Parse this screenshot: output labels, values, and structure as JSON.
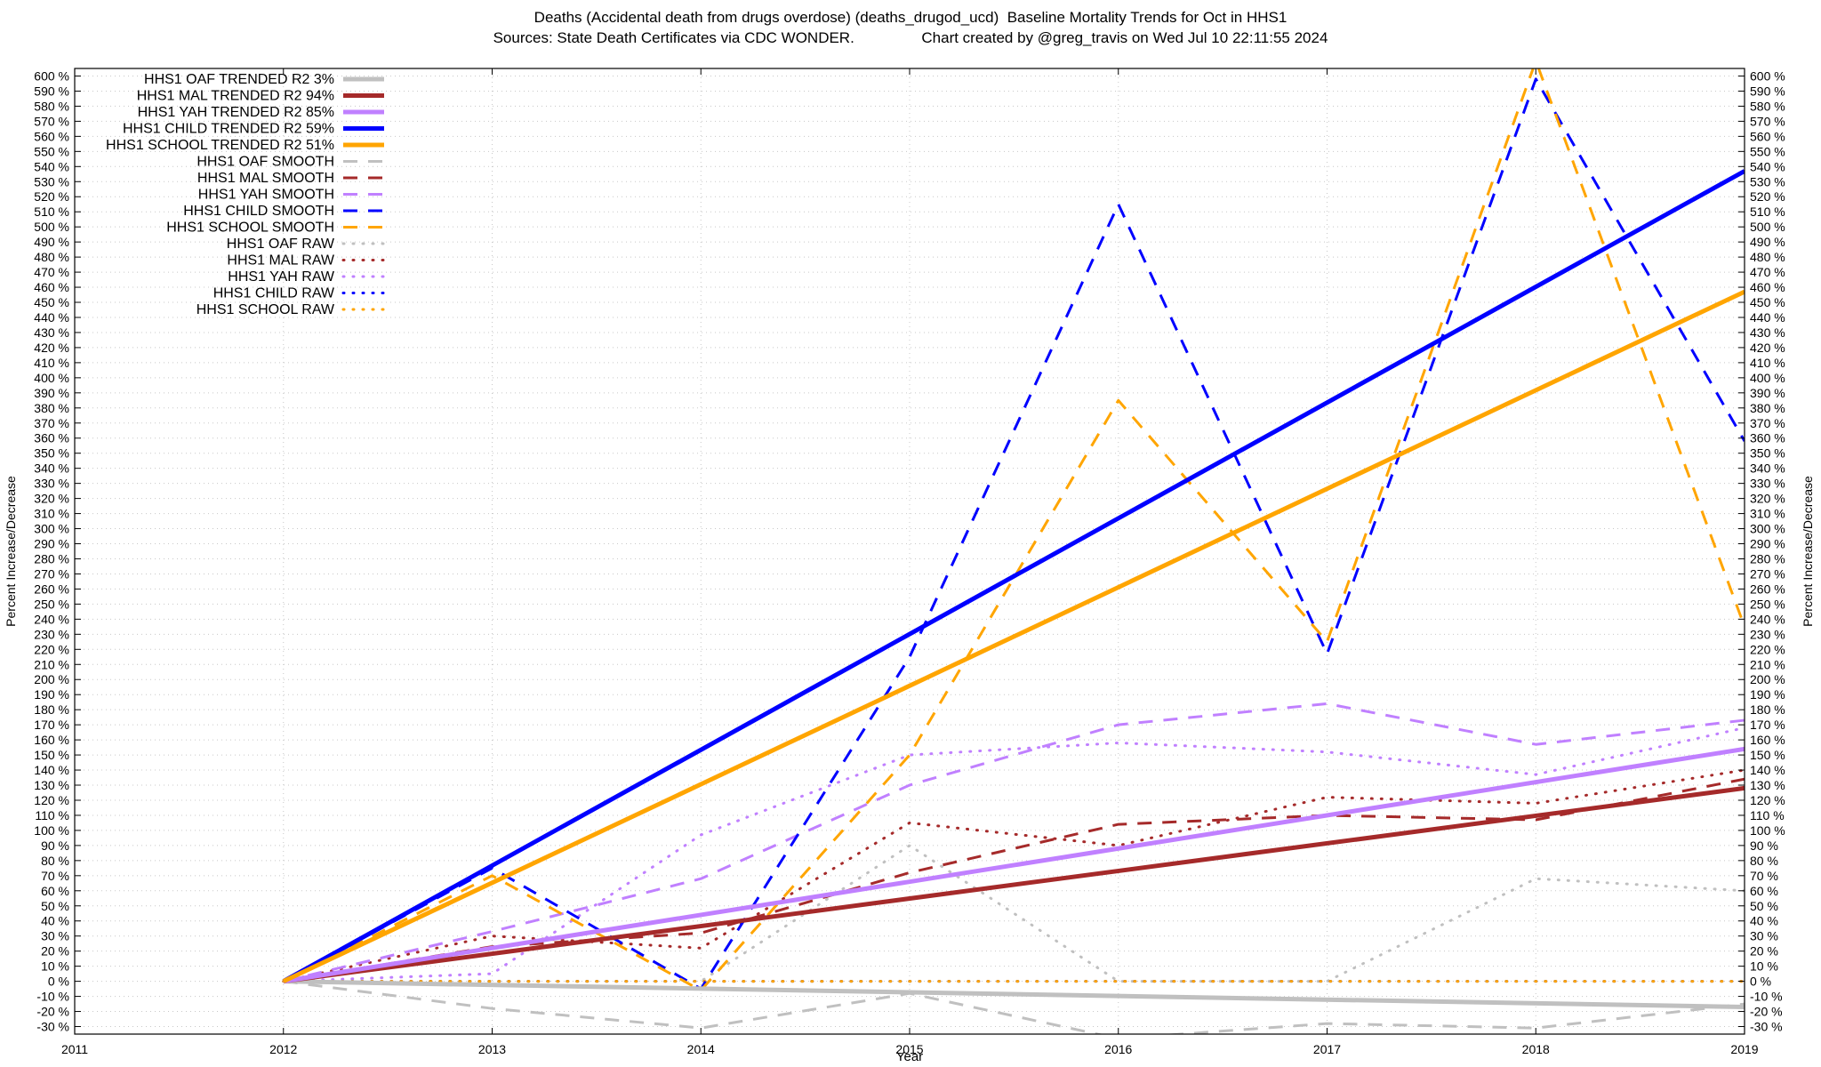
{
  "header": {
    "title_line1": "Deaths (Accidental death from drugs overdose) (deaths_drugod_ucd)  Baseline Mortality Trends for Oct in HHS1",
    "title_line2": "Sources: State Death Certificates via CDC WONDER.                Chart created by @greg_travis on Wed Jul 10 22:11:55 2024"
  },
  "chart_data": {
    "type": "line",
    "xlabel": "Year",
    "ylabel": "Percent Increase/Decrease",
    "y2label": "Percent Increase/Decrease",
    "xlim": [
      2011,
      2019
    ],
    "ylim": [
      -35,
      605
    ],
    "x_ticks": [
      2011,
      2012,
      2013,
      2014,
      2015,
      2016,
      2017,
      2018,
      2019
    ],
    "y_ticks": [
      -30,
      -20,
      -10,
      0,
      10,
      20,
      30,
      40,
      50,
      60,
      70,
      80,
      90,
      100,
      110,
      120,
      130,
      140,
      150,
      160,
      170,
      180,
      190,
      200,
      210,
      220,
      230,
      240,
      250,
      260,
      270,
      280,
      290,
      300,
      310,
      320,
      330,
      340,
      350,
      360,
      370,
      380,
      390,
      400,
      410,
      420,
      430,
      440,
      450,
      460,
      470,
      480,
      490,
      500,
      510,
      520,
      530,
      540,
      550,
      560,
      570,
      580,
      590,
      600
    ],
    "y_tick_suffix": " %",
    "grid": true,
    "legend_position": "top-left",
    "series": [
      {
        "name": "HHS1 OAF TRENDED R2  3%",
        "style": "solid",
        "color": "#c0c0c0",
        "x": [
          2012,
          2019
        ],
        "y": [
          0,
          -17
        ]
      },
      {
        "name": "HHS1 MAL TRENDED R2  94%",
        "style": "solid",
        "color": "#a52a2a",
        "x": [
          2012,
          2019
        ],
        "y": [
          0,
          128
        ]
      },
      {
        "name": "HHS1 YAH TRENDED R2  85%",
        "style": "solid",
        "color": "#c080ff",
        "x": [
          2012,
          2019
        ],
        "y": [
          0,
          154
        ]
      },
      {
        "name": "HHS1 CHILD TRENDED R2  59%",
        "style": "solid",
        "color": "#0000ff",
        "x": [
          2012,
          2019
        ],
        "y": [
          0,
          537
        ]
      },
      {
        "name": "HHS1 SCHOOL TRENDED R2  51%",
        "style": "solid",
        "color": "#ffa500",
        "x": [
          2012,
          2019
        ],
        "y": [
          0,
          457
        ]
      },
      {
        "name": "HHS1 OAF SMOOTH",
        "style": "dashed",
        "color": "#c0c0c0",
        "x": [
          2012,
          2013,
          2014,
          2015,
          2016,
          2017,
          2018,
          2019
        ],
        "y": [
          0,
          -18,
          -31,
          -8,
          -38,
          -28,
          -31,
          -15
        ]
      },
      {
        "name": "HHS1 MAL SMOOTH",
        "style": "dashed",
        "color": "#a52a2a",
        "x": [
          2012,
          2013,
          2014,
          2015,
          2016,
          2017,
          2018,
          2019
        ],
        "y": [
          0,
          23,
          32,
          72,
          104,
          110,
          107,
          134
        ]
      },
      {
        "name": "HHS1 YAH SMOOTH",
        "style": "dashed",
        "color": "#c080ff",
        "x": [
          2012,
          2013,
          2014,
          2015,
          2016,
          2017,
          2018,
          2019
        ],
        "y": [
          0,
          33,
          68,
          130,
          170,
          184,
          157,
          173
        ]
      },
      {
        "name": "HHS1 CHILD SMOOTH",
        "style": "dashed",
        "color": "#0000ff",
        "x": [
          2012,
          2013,
          2014,
          2015,
          2016,
          2017,
          2018,
          2019
        ],
        "y": [
          0,
          75,
          -5,
          215,
          515,
          217,
          598,
          358
        ]
      },
      {
        "name": "HHS1 SCHOOL SMOOTH",
        "style": "dashed",
        "color": "#ffa500",
        "x": [
          2012,
          2013,
          2014,
          2015,
          2016,
          2017,
          2018,
          2019
        ],
        "y": [
          0,
          70,
          -6,
          150,
          385,
          225,
          610,
          235
        ]
      },
      {
        "name": "HHS1 OAF RAW",
        "style": "dotted",
        "color": "#c0c0c0",
        "x": [
          2012,
          2013,
          2014,
          2015,
          2016,
          2017,
          2018,
          2019
        ],
        "y": [
          0,
          0,
          0,
          90,
          0,
          0,
          68,
          60
        ]
      },
      {
        "name": "HHS1 MAL RAW",
        "style": "dotted",
        "color": "#a52a2a",
        "x": [
          2012,
          2013,
          2014,
          2015,
          2016,
          2017,
          2018,
          2019
        ],
        "y": [
          0,
          30,
          22,
          105,
          90,
          122,
          118,
          140
        ]
      },
      {
        "name": "HHS1 YAH RAW",
        "style": "dotted",
        "color": "#c080ff",
        "x": [
          2012,
          2013,
          2014,
          2015,
          2016,
          2017,
          2018,
          2019
        ],
        "y": [
          0,
          5,
          97,
          150,
          158,
          152,
          137,
          168
        ]
      },
      {
        "name": "HHS1 CHILD RAW",
        "style": "dotted",
        "color": "#0000ff",
        "x": [
          2012,
          2013,
          2014,
          2015,
          2016,
          2017,
          2018,
          2019
        ],
        "y": [
          0,
          0,
          0,
          0,
          0,
          0,
          0,
          0
        ]
      },
      {
        "name": "HHS1 SCHOOL RAW",
        "style": "dotted",
        "color": "#ffa500",
        "x": [
          2012,
          2013,
          2014,
          2015,
          2016,
          2017,
          2018,
          2019
        ],
        "y": [
          0,
          0,
          0,
          0,
          0,
          0,
          0,
          0
        ]
      }
    ]
  }
}
